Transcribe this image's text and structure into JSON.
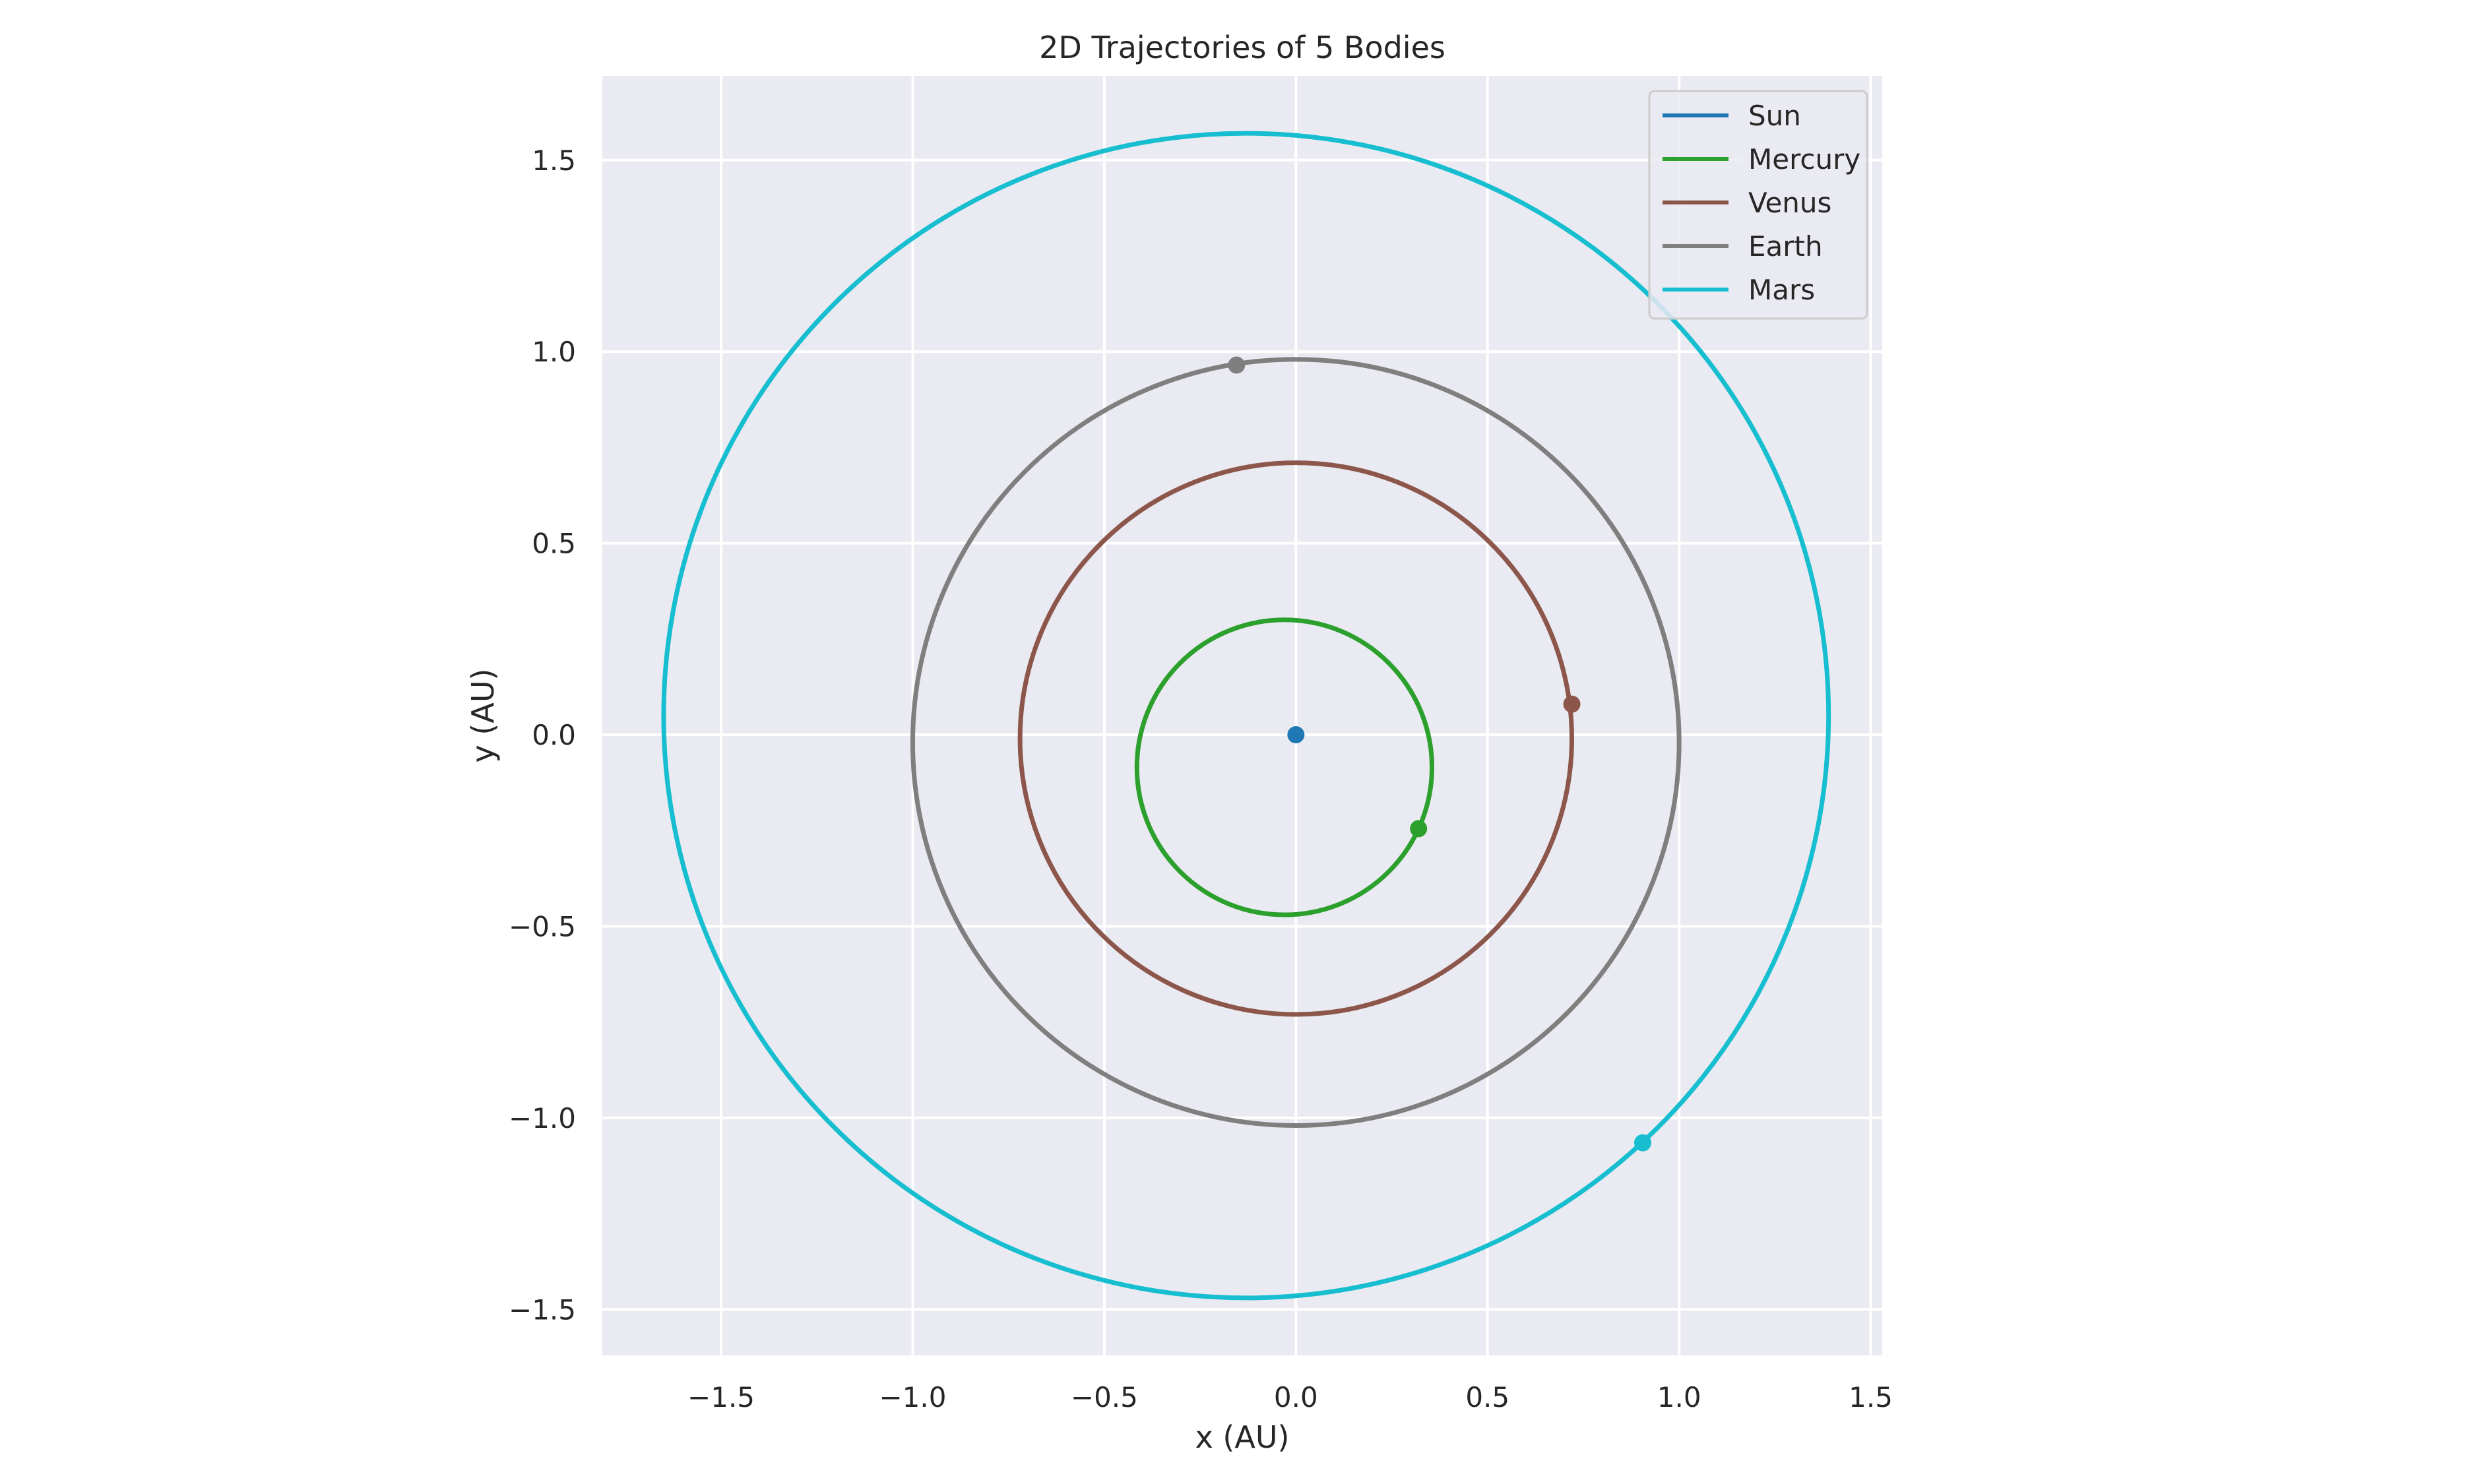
{
  "chart_data": {
    "type": "line",
    "title": "2D Trajectories of 5 Bodies",
    "xlabel": "x (AU)",
    "ylabel": "y (AU)",
    "xlim": [
      -1.81,
      1.53
    ],
    "ylim": [
      -1.62,
      1.72
    ],
    "aspect": "equal",
    "grid": true,
    "legend_position": "top-right",
    "xticks": [
      -1.5,
      -1.0,
      -0.5,
      0.0,
      0.5,
      1.0,
      1.5
    ],
    "yticks": [
      -1.5,
      -1.0,
      -0.5,
      0.0,
      0.5,
      1.0,
      1.5
    ],
    "xtick_labels": [
      "−1.5",
      "−1.0",
      "−0.5",
      "0.0",
      "0.5",
      "1.0",
      "1.5"
    ],
    "ytick_labels": [
      "−1.5",
      "−1.0",
      "−0.5",
      "0.0",
      "0.5",
      "1.0",
      "1.5"
    ],
    "series": [
      {
        "name": "Sun",
        "color": "#1f77b4",
        "orbit": null,
        "current_position": [
          0.0,
          0.0
        ]
      },
      {
        "name": "Mercury",
        "color": "#2ca02c",
        "orbit": {
          "center": [
            -0.03,
            -0.085
          ],
          "rx": 0.385,
          "ry": 0.385
        },
        "current_position": [
          0.32,
          -0.245
        ]
      },
      {
        "name": "Venus",
        "color": "#8c564b",
        "orbit": {
          "center": [
            0.0,
            -0.01
          ],
          "rx": 0.72,
          "ry": 0.72
        },
        "current_position": [
          0.72,
          0.08
        ]
      },
      {
        "name": "Earth",
        "color": "#7f7f7f",
        "orbit": {
          "center": [
            0.0,
            -0.02
          ],
          "rx": 1.0,
          "ry": 1.0
        },
        "current_position": [
          -0.155,
          0.965
        ]
      },
      {
        "name": "Mars",
        "color": "#17becf",
        "orbit": {
          "center": [
            -0.13,
            0.05
          ],
          "rx": 1.52,
          "ry": 1.52
        },
        "current_position": [
          0.905,
          -1.065
        ]
      }
    ]
  }
}
